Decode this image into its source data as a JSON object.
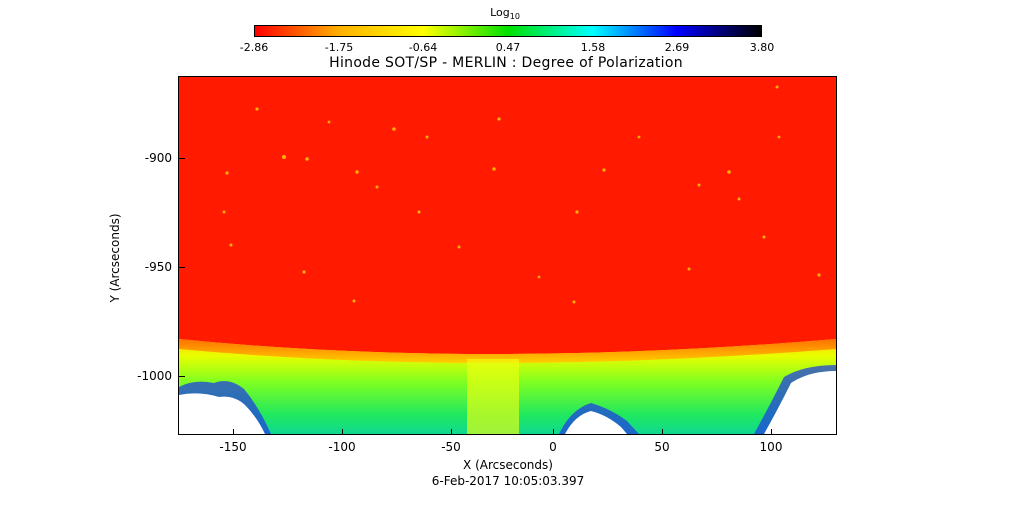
{
  "colorbar": {
    "title": "Log",
    "title_sub": "10",
    "ticks": [
      "-2.86",
      "-1.75",
      "-0.64",
      "0.47",
      "1.58",
      "2.69",
      "3.80"
    ],
    "colors": [
      "#ff0000",
      "#ffb000",
      "#ffff00",
      "#00e000",
      "#00ffff",
      "#0000ff",
      "#000000"
    ]
  },
  "plot": {
    "title": "Hinode SOT/SP - MERLIN : Degree of Polarization",
    "xlabel": "X (Arcseconds)",
    "ylabel": "Y (Arcseconds)",
    "xticks": [
      "-150",
      "-100",
      "-50",
      "0",
      "50",
      "100"
    ],
    "yticks": [
      "-900",
      "-950",
      "-1000"
    ],
    "xrange": [
      -172,
      130
    ],
    "yrange": [
      -1026,
      -862
    ],
    "timestamp": "6-Feb-2017 10:05:03.397"
  }
}
